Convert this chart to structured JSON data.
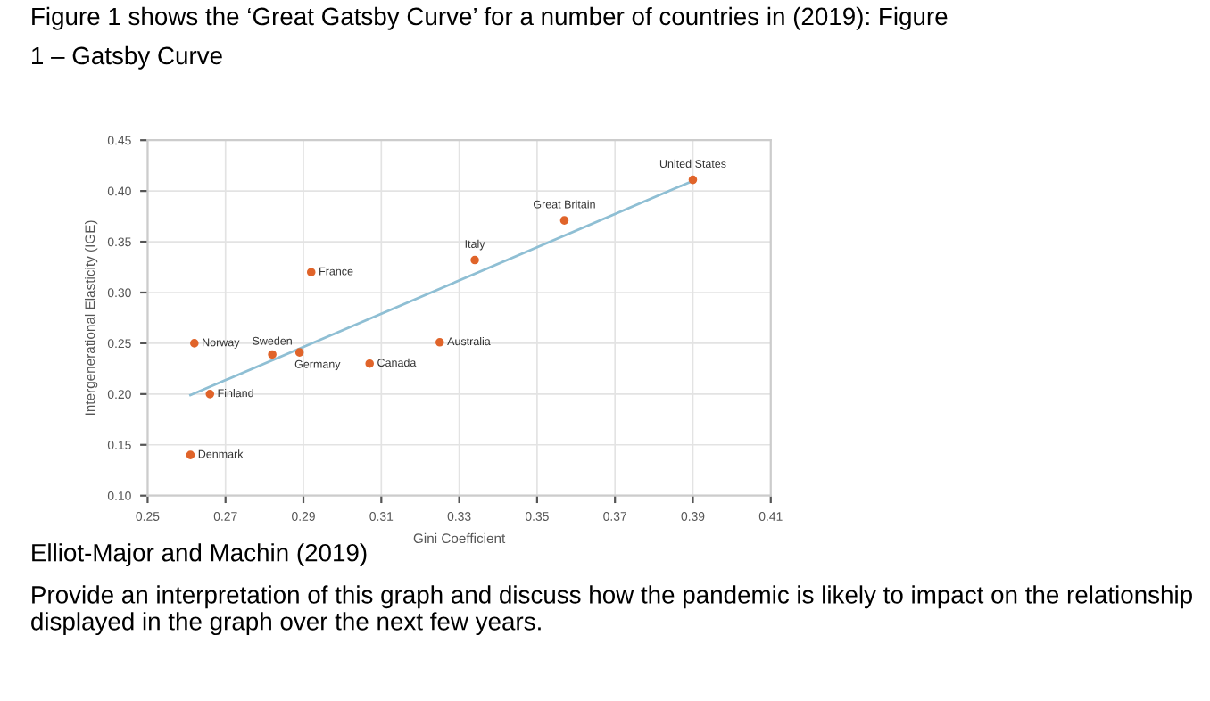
{
  "chart_data": {
    "type": "scatter",
    "title": "Figure 1 shows the ‘Great Gatsby Curve’ for a number of countries in (2019): Figure\n1 – Gatsby Curve",
    "xlabel": "Gini Coefficient",
    "ylabel": "Intergenerational Elasticity (IGE)",
    "xlim": [
      0.25,
      0.41
    ],
    "xticks": [
      0.25,
      0.27,
      0.29,
      0.31,
      0.33,
      0.35,
      0.37,
      0.39,
      0.41
    ],
    "ylim": [
      0.1,
      0.45
    ],
    "yticks": [
      {
        "value": 0.1,
        "label": "0.10"
      },
      0.15,
      {
        "value": 0.2,
        "label": "0.20"
      },
      0.25,
      {
        "value": 0.3,
        "label": "0.30"
      },
      0.35,
      {
        "value": 0.4,
        "label": "0.40"
      },
      0.45
    ],
    "grid": true,
    "legend": false,
    "series": [
      {
        "color": "#e0642a",
        "marker": "circle",
        "x": [
          0.261,
          0.262,
          0.266,
          0.282,
          0.289,
          0.292,
          0.307,
          0.325,
          0.334,
          0.357,
          0.39
        ],
        "values": [
          0.14,
          0.25,
          0.2,
          0.239,
          0.241,
          0.32,
          0.23,
          0.251,
          0.332,
          0.371,
          0.411
        ]
      },
      {
        "type": "line",
        "color": "#8fbfd4",
        "marker": "none",
        "line_style": "solid",
        "x": [
          0.261,
          0.39
        ],
        "values": [
          0.199,
          0.41
        ]
      }
    ],
    "annotations": [
      {
        "text": "Denmark",
        "x": 0.261,
        "y": 0.14
      },
      {
        "text": "Norway",
        "x": 0.262,
        "y": 0.25
      },
      {
        "text": "Finland",
        "x": 0.266,
        "y": 0.2
      },
      {
        "text": "Sweden",
        "x": 0.282,
        "y": 0.239
      },
      {
        "text": "Germany",
        "x": 0.289,
        "y": 0.241
      },
      {
        "text": "France",
        "x": 0.292,
        "y": 0.32
      },
      {
        "text": "Canada",
        "x": 0.307,
        "y": 0.23
      },
      {
        "text": "Australia",
        "x": 0.325,
        "y": 0.251
      },
      {
        "text": "Italy",
        "x": 0.334,
        "y": 0.332
      },
      {
        "text": "Great Britain",
        "x": 0.357,
        "y": 0.371
      },
      {
        "text": "United States",
        "x": 0.39,
        "y": 0.411
      },
      "Elliot-Major and Machin (2019)",
      "Provide an interpretation of this graph and discuss how the pandemic is likely to impact on the relationship displayed in the graph over the next few years."
    ]
  }
}
